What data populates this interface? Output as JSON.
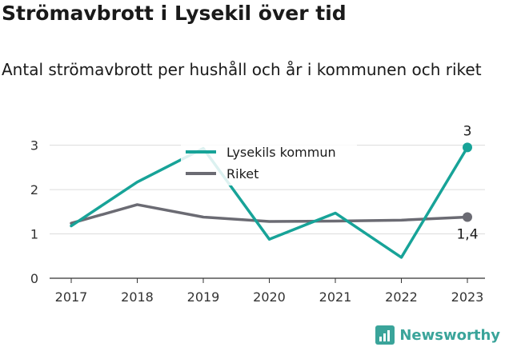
{
  "title": "Strömavbrott i Lysekil över tid",
  "subtitle": "Antal strömavbrott per hushåll och år i kommunen och riket",
  "brand": {
    "name": "Newsworthy",
    "icon": "newsworthy-logo-icon",
    "color": "#3aa49a"
  },
  "chart_data": {
    "type": "line",
    "categories": [
      "2017",
      "2018",
      "2019",
      "2020",
      "2021",
      "2022",
      "2023"
    ],
    "ylim": [
      0,
      3.3
    ],
    "yticks": [
      "0",
      "1",
      "2",
      "3"
    ],
    "grid": true,
    "legend_position": "top-center",
    "series": [
      {
        "name": "Lysekils kommun",
        "color": "#17a398",
        "values": [
          1.18,
          2.17,
          2.93,
          0.88,
          1.47,
          0.47,
          2.95
        ],
        "end_label": "3"
      },
      {
        "name": "Riket",
        "color": "#6b6b73",
        "values": [
          1.24,
          1.66,
          1.38,
          1.28,
          1.29,
          1.31,
          1.38
        ],
        "end_label": "1,4"
      }
    ]
  }
}
